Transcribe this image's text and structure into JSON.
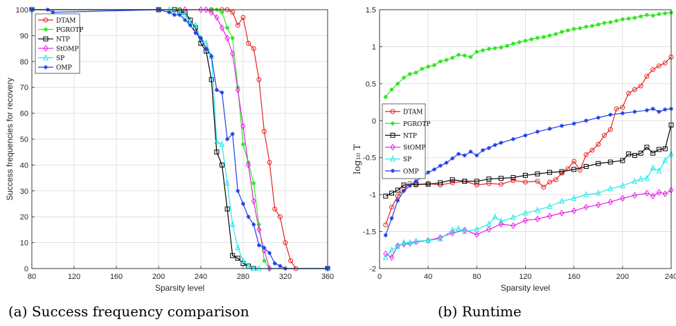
{
  "captions": [
    "(a) Success frequency comparison",
    "(b) Runtime"
  ],
  "chart_data": [
    {
      "type": "line",
      "xlabel": "Sparsity level",
      "ylabel": "Success frequencies for recovery",
      "xlim": [
        80,
        360
      ],
      "ylim": [
        0,
        100
      ],
      "xticks": [
        "80",
        "120",
        "160",
        "200",
        "240",
        "280",
        "320",
        "360"
      ],
      "yticks": [
        "0",
        "10",
        "20",
        "30",
        "40",
        "50",
        "60",
        "70",
        "80",
        "90",
        "100"
      ],
      "grid": true,
      "legend_position": "top-left",
      "series": [
        {
          "name": "DTAM",
          "color": "#e8201e",
          "marker": "circle",
          "x": [
            80,
            220,
            250,
            260,
            265,
            270,
            275,
            280,
            285,
            290,
            295,
            300,
            305,
            310,
            315,
            320,
            325,
            330,
            360
          ],
          "y": [
            100,
            100,
            100,
            100,
            100,
            99,
            94,
            97,
            87,
            85,
            73,
            53,
            41,
            23,
            20,
            10,
            3,
            0,
            0
          ]
        },
        {
          "name": "PGROTP",
          "color": "#2ee81e",
          "marker": "star",
          "x": [
            80,
            220,
            250,
            255,
            260,
            265,
            270,
            275,
            280,
            285,
            290,
            295,
            300,
            305,
            360
          ],
          "y": [
            100,
            100,
            100,
            100,
            99,
            93,
            89,
            70,
            48,
            41,
            33,
            17,
            3,
            0,
            0
          ]
        },
        {
          "name": "NTP",
          "color": "#000000",
          "marker": "square",
          "x": [
            80,
            200,
            215,
            220,
            225,
            230,
            235,
            240,
            245,
            250,
            255,
            260,
            265,
            270,
            275,
            280,
            285,
            290,
            360
          ],
          "y": [
            100,
            100,
            100,
            99,
            99,
            96,
            93,
            87,
            84,
            73,
            45,
            40,
            23,
            5,
            4,
            2,
            1,
            0,
            0
          ]
        },
        {
          "name": "StOMP",
          "color": "#e81ee8",
          "marker": "diamond",
          "x": [
            80,
            225,
            240,
            245,
            250,
            255,
            260,
            265,
            270,
            275,
            280,
            285,
            290,
            295,
            300,
            305,
            360
          ],
          "y": [
            100,
            100,
            100,
            100,
            99,
            97,
            93,
            89,
            83,
            69,
            55,
            40,
            26,
            15,
            7,
            0,
            0
          ]
        },
        {
          "name": "SP",
          "color": "#1ee8e8",
          "marker": "triangle",
          "x": [
            80,
            210,
            220,
            225,
            230,
            235,
            240,
            245,
            250,
            255,
            260,
            265,
            270,
            275,
            280,
            285,
            290,
            295,
            360
          ],
          "y": [
            100,
            100,
            99,
            98,
            95,
            94,
            89,
            87,
            82,
            49,
            48,
            33,
            17,
            8,
            3,
            1,
            0,
            0,
            0
          ]
        },
        {
          "name": "OMP",
          "color": "#1e3ce8",
          "marker": "asterisk",
          "x": [
            80,
            95,
            100,
            200,
            210,
            215,
            220,
            225,
            230,
            235,
            240,
            245,
            250,
            255,
            260,
            265,
            270,
            275,
            280,
            285,
            290,
            295,
            300,
            305,
            310,
            315,
            320,
            360
          ],
          "y": [
            100,
            100,
            99,
            100,
            99,
            98,
            98,
            96,
            94,
            91,
            89,
            85,
            82,
            69,
            68,
            50,
            52,
            30,
            25,
            20,
            17,
            9,
            8,
            6,
            2,
            1,
            0,
            0
          ]
        }
      ]
    },
    {
      "type": "line",
      "xlabel": "Sparsity level",
      "ylabel": "log₁₀ T",
      "xlim": [
        0,
        240
      ],
      "ylim": [
        -2,
        1.5
      ],
      "xticks": [
        "0",
        "40",
        "80",
        "120",
        "160",
        "200",
        "240"
      ],
      "yticks": [
        "-2",
        "-1.5",
        "-1",
        "-0.5",
        "0",
        "0.5",
        "1",
        "1.5"
      ],
      "grid": true,
      "legend_position": "middle-left",
      "series": [
        {
          "name": "DTAM",
          "color": "#e8201e",
          "marker": "circle",
          "x": [
            5,
            10,
            15,
            20,
            25,
            30,
            40,
            50,
            60,
            70,
            80,
            90,
            100,
            110,
            120,
            130,
            135,
            140,
            145,
            150,
            155,
            160,
            165,
            170,
            175,
            180,
            185,
            190,
            195,
            200,
            205,
            210,
            215,
            220,
            225,
            230,
            235,
            240
          ],
          "y": [
            -1.41,
            -1.17,
            -1.02,
            -0.93,
            -0.85,
            -0.87,
            -0.85,
            -0.87,
            -0.84,
            -0.82,
            -0.87,
            -0.85,
            -0.86,
            -0.81,
            -0.83,
            -0.82,
            -0.9,
            -0.83,
            -0.8,
            -0.71,
            -0.65,
            -0.55,
            -0.67,
            -0.46,
            -0.4,
            -0.32,
            -0.2,
            -0.12,
            0.16,
            0.18,
            0.37,
            0.42,
            0.47,
            0.6,
            0.69,
            0.74,
            0.78,
            0.86
          ]
        },
        {
          "name": "PGROTP",
          "color": "#2ee81e",
          "marker": "star",
          "x": [
            5,
            10,
            15,
            20,
            25,
            30,
            35,
            40,
            45,
            50,
            55,
            60,
            65,
            70,
            75,
            80,
            85,
            90,
            95,
            100,
            105,
            110,
            115,
            120,
            125,
            130,
            135,
            140,
            145,
            150,
            155,
            160,
            165,
            170,
            175,
            180,
            185,
            190,
            195,
            200,
            205,
            210,
            215,
            220,
            225,
            230,
            235,
            240
          ],
          "y": [
            0.32,
            0.42,
            0.5,
            0.58,
            0.63,
            0.65,
            0.7,
            0.73,
            0.75,
            0.8,
            0.82,
            0.85,
            0.89,
            0.88,
            0.86,
            0.93,
            0.95,
            0.97,
            0.98,
            0.99,
            1.01,
            1.04,
            1.06,
            1.08,
            1.1,
            1.12,
            1.13,
            1.15,
            1.17,
            1.2,
            1.22,
            1.24,
            1.25,
            1.27,
            1.28,
            1.3,
            1.32,
            1.33,
            1.35,
            1.37,
            1.38,
            1.39,
            1.41,
            1.43,
            1.42,
            1.44,
            1.45,
            1.46
          ]
        },
        {
          "name": "NTP",
          "color": "#000000",
          "marker": "square",
          "x": [
            5,
            10,
            15,
            20,
            30,
            40,
            50,
            60,
            70,
            80,
            90,
            100,
            110,
            120,
            130,
            140,
            150,
            160,
            170,
            180,
            190,
            200,
            205,
            210,
            215,
            220,
            225,
            230,
            235,
            240
          ],
          "y": [
            -1.02,
            -0.98,
            -0.94,
            -0.87,
            -0.86,
            -0.86,
            -0.84,
            -0.8,
            -0.82,
            -0.82,
            -0.79,
            -0.78,
            -0.77,
            -0.74,
            -0.72,
            -0.7,
            -0.69,
            -0.66,
            -0.62,
            -0.58,
            -0.56,
            -0.54,
            -0.45,
            -0.47,
            -0.44,
            -0.36,
            -0.44,
            -0.39,
            -0.38,
            -0.06
          ]
        },
        {
          "name": "StOMP",
          "color": "#e81ee8",
          "marker": "diamond",
          "x": [
            5,
            10,
            15,
            20,
            25,
            30,
            40,
            50,
            60,
            70,
            80,
            90,
            100,
            110,
            120,
            130,
            140,
            150,
            160,
            170,
            180,
            190,
            200,
            210,
            220,
            225,
            230,
            235,
            240
          ],
          "y": [
            -1.8,
            -1.85,
            -1.69,
            -1.67,
            -1.66,
            -1.64,
            -1.62,
            -1.58,
            -1.52,
            -1.48,
            -1.54,
            -1.47,
            -1.4,
            -1.42,
            -1.35,
            -1.33,
            -1.29,
            -1.25,
            -1.22,
            -1.17,
            -1.14,
            -1.1,
            -1.05,
            -1.01,
            -0.98,
            -1.02,
            -0.97,
            -0.99,
            -0.94
          ]
        },
        {
          "name": "SP",
          "color": "#1ee8e8",
          "marker": "triangle",
          "x": [
            5,
            10,
            15,
            20,
            25,
            30,
            40,
            50,
            60,
            65,
            70,
            80,
            90,
            95,
            100,
            110,
            120,
            130,
            140,
            150,
            160,
            170,
            180,
            190,
            200,
            210,
            215,
            220,
            225,
            230,
            235,
            240
          ],
          "y": [
            -1.85,
            -1.75,
            -1.7,
            -1.65,
            -1.65,
            -1.63,
            -1.62,
            -1.6,
            -1.48,
            -1.46,
            -1.5,
            -1.47,
            -1.4,
            -1.3,
            -1.36,
            -1.31,
            -1.25,
            -1.21,
            -1.16,
            -1.09,
            -1.05,
            -1.0,
            -0.98,
            -0.92,
            -0.88,
            -0.82,
            -0.79,
            -0.78,
            -0.64,
            -0.68,
            -0.54,
            -0.45
          ]
        },
        {
          "name": "OMP",
          "color": "#1e3ce8",
          "marker": "asterisk",
          "x": [
            5,
            10,
            15,
            20,
            25,
            30,
            35,
            40,
            45,
            50,
            55,
            60,
            65,
            70,
            75,
            80,
            85,
            90,
            95,
            100,
            110,
            120,
            130,
            140,
            150,
            160,
            170,
            180,
            190,
            200,
            210,
            220,
            225,
            230,
            235,
            240
          ],
          "y": [
            -1.55,
            -1.32,
            -1.08,
            -0.95,
            -0.88,
            -0.82,
            -0.76,
            -0.7,
            -0.66,
            -0.61,
            -0.57,
            -0.51,
            -0.45,
            -0.47,
            -0.42,
            -0.47,
            -0.4,
            -0.37,
            -0.33,
            -0.3,
            -0.25,
            -0.2,
            -0.15,
            -0.11,
            -0.07,
            -0.04,
            0.0,
            0.04,
            0.08,
            0.1,
            0.12,
            0.14,
            0.16,
            0.12,
            0.15,
            0.16
          ]
        }
      ]
    }
  ]
}
